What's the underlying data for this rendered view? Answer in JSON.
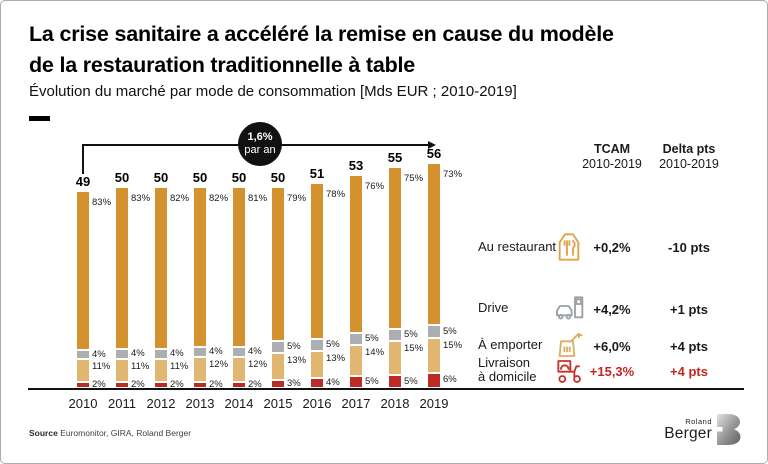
{
  "title_line1": "La crise sanitaire a accéléré la remise en cause du modèle",
  "title_line2": "de la restauration traditionnelle à table",
  "subtitle": "Évolution du marché par mode de consommation [Mds EUR ; 2010-2019]",
  "annotation": {
    "line1": "1,6%",
    "line2": "par an"
  },
  "chart_data": {
    "type": "bar",
    "stacked": true,
    "title": "Évolution du marché par mode de consommation",
    "unit": "Mds EUR",
    "categories": [
      2010,
      2011,
      2012,
      2013,
      2014,
      2015,
      2016,
      2017,
      2018,
      2019
    ],
    "totals": [
      49,
      50,
      50,
      50,
      50,
      50,
      51,
      53,
      55,
      56
    ],
    "series": [
      {
        "name": "Au restaurant",
        "color": "#d4922f",
        "values_pct": [
          83,
          83,
          82,
          82,
          81,
          79,
          78,
          76,
          75,
          73
        ]
      },
      {
        "name": "Drive",
        "color": "#acaeb2",
        "values_pct": [
          4,
          4,
          4,
          4,
          4,
          5,
          5,
          5,
          5,
          5
        ]
      },
      {
        "name": "À emporter",
        "color": "#e0b671",
        "values_pct": [
          11,
          11,
          11,
          12,
          12,
          13,
          13,
          14,
          15,
          15
        ]
      },
      {
        "name": "Livraison à domicile",
        "color": "#be2b26",
        "values_pct": [
          2,
          2,
          2,
          2,
          2,
          3,
          4,
          5,
          5,
          6
        ]
      }
    ],
    "growth_annotation": "1,6% par an",
    "legend_position": "right",
    "grid": false
  },
  "legend": {
    "col1_header_line1": "TCAM",
    "col1_header_line2": "2010-2019",
    "col2_header_line1": "Delta pts",
    "col2_header_line2": "2010-2019",
    "rows": [
      {
        "label": "Au restaurant",
        "label2": "",
        "icon": "restaurant-icon",
        "tcam": "+0,2%",
        "delta": "-10 pts",
        "highlight": false
      },
      {
        "label": "Drive",
        "label2": "",
        "icon": "drive-icon",
        "tcam": "+4,2%",
        "delta": "+1 pts",
        "highlight": false
      },
      {
        "label": "À emporter",
        "label2": "",
        "icon": "takeaway-icon",
        "tcam": "+6,0%",
        "delta": "+4 pts",
        "highlight": false
      },
      {
        "label": "Livraison",
        "label2": "à domicile",
        "icon": "delivery-icon",
        "tcam": "+15,3%",
        "delta": "+4 pts",
        "highlight": true
      }
    ]
  },
  "source": {
    "label": "Source",
    "text": "Euromonitor, GIRA, Roland Berger"
  },
  "logo": {
    "line1": "Roland",
    "line2": "Berger"
  },
  "colors": {
    "restaurant": "#d4922f",
    "drive": "#acaeb2",
    "emporter": "#e0b671",
    "livraison": "#be2b26",
    "highlight_text": "#c1271f",
    "black": "#111111"
  }
}
